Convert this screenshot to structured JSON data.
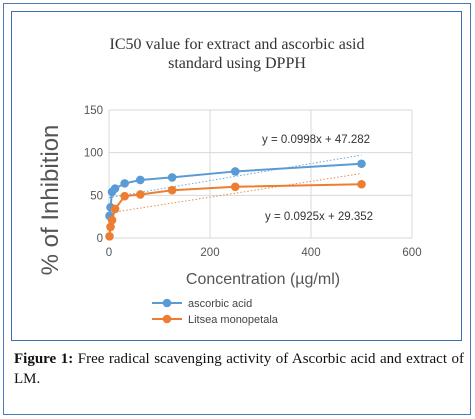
{
  "figure": {
    "caption_label": "Figure 1:",
    "caption_text": " Free radical scavenging activity of Ascorbic acid and extract of LM."
  },
  "chart_data": {
    "type": "scatter",
    "title_line1": "IC50 value  for extract and ascorbic asid",
    "title_line2": "standard using  DPPH",
    "xlabel": "Concentration (µg/ml)",
    "ylabel": "% of Inhibition",
    "xlim": [
      0,
      600
    ],
    "ylim": [
      0,
      150
    ],
    "xticks": [
      0,
      200,
      400,
      600
    ],
    "yticks": [
      0,
      50,
      100,
      150
    ],
    "grid": true,
    "legend_position": "bottom",
    "series": [
      {
        "name": "ascorbic acid",
        "color": "#5b9bd5",
        "x": [
          1,
          3,
          6,
          12,
          31,
          62,
          125,
          250,
          500
        ],
        "y": [
          26,
          36,
          54,
          58,
          64,
          68,
          71,
          78,
          87
        ],
        "trendline": {
          "slope": 0.0998,
          "intercept": 47.282,
          "label": "y = 0.0998x + 47.282"
        }
      },
      {
        "name": "Litsea monopetala",
        "color": "#ed7d31",
        "x": [
          1,
          3,
          6,
          12,
          31,
          62,
          125,
          250,
          500
        ],
        "y": [
          2,
          13,
          21,
          34,
          49,
          51,
          56,
          60,
          63
        ],
        "trendline": {
          "slope": 0.0925,
          "intercept": 29.352,
          "label": "y = 0.0925x + 29.352"
        }
      }
    ]
  }
}
